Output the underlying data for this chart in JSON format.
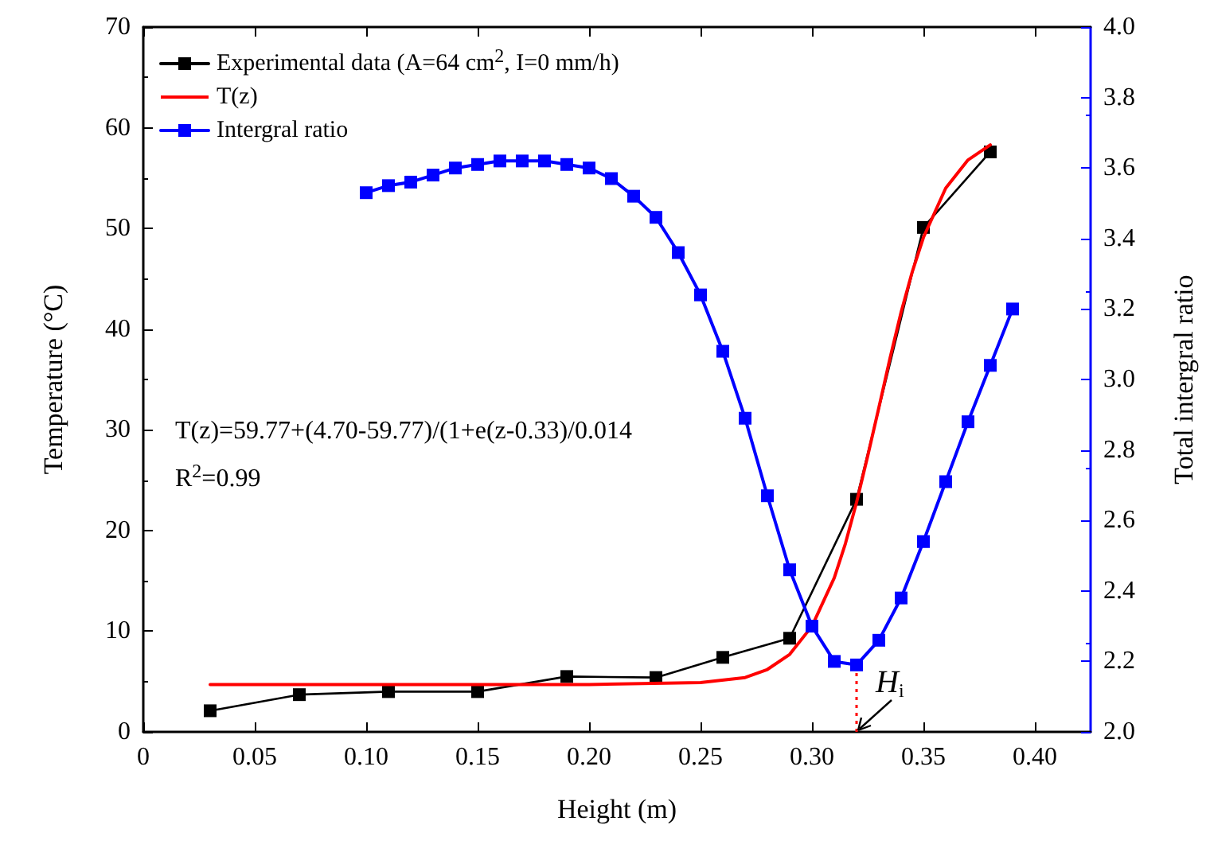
{
  "chart_data": {
    "type": "line",
    "xlabel": "Height (m)",
    "ylabel": "Temperature (°C)",
    "y2label": "Total intergral ratio",
    "xlim": [
      0,
      0.425
    ],
    "xticks": [
      0,
      {
        "value": 0.05,
        "label": "0.05"
      },
      {
        "value": 0.1,
        "label": "0.10"
      },
      {
        "value": 0.15,
        "label": "0.15"
      },
      {
        "value": 0.2,
        "label": "0.20"
      },
      {
        "value": 0.25,
        "label": "0.25"
      },
      {
        "value": 0.3,
        "label": "0.30"
      },
      {
        "value": 0.35,
        "label": "0.35"
      },
      {
        "value": 0.4,
        "label": "0.40"
      }
    ],
    "ylim": [
      0,
      70
    ],
    "yticks": [
      0,
      10,
      20,
      30,
      40,
      50,
      60,
      70
    ],
    "y2lim": [
      2.0,
      4.0
    ],
    "y2ticks": [
      {
        "value": 2.0,
        "label": "2.0"
      },
      {
        "value": 2.2,
        "label": "2.2"
      },
      {
        "value": 2.4,
        "label": "2.4"
      },
      {
        "value": 2.6,
        "label": "2.6"
      },
      {
        "value": 2.8,
        "label": "2.8"
      },
      {
        "value": 3.0,
        "label": "3.0"
      },
      {
        "value": 3.2,
        "label": "3.2"
      },
      {
        "value": 3.4,
        "label": "3.4"
      },
      {
        "value": 3.6,
        "label": "3.6"
      },
      {
        "value": 3.8,
        "label": "3.8"
      },
      {
        "value": 4.0,
        "label": "4.0"
      }
    ],
    "grid": false,
    "legend": "top left",
    "marker": "square",
    "line_style": "solid",
    "series": [
      {
        "name": "Experimental data (A=64 cm$^{2}$, I=0 mm/h)",
        "color": "#000000",
        "x": [
          0.03,
          0.07,
          0.11,
          0.15,
          0.19,
          0.23,
          0.26,
          0.29,
          0.32,
          0.35,
          0.38
        ],
        "values": [
          2.1,
          3.7,
          4.0,
          4.0,
          5.5,
          5.4,
          7.4,
          9.3,
          23.1,
          50.1,
          57.6
        ]
      },
      {
        "name": "T(z)",
        "color": "#ff0000",
        "marker": "none",
        "x": [
          0.03,
          0.1,
          0.2,
          0.25,
          0.27,
          0.28,
          0.29,
          0.3,
          0.31,
          0.315,
          0.32,
          0.325,
          0.33,
          0.335,
          0.34,
          0.345,
          0.35,
          0.36,
          0.37,
          0.38
        ],
        "values": [
          4.7,
          4.7,
          4.7,
          4.9,
          5.4,
          6.2,
          7.7,
          10.5,
          15.3,
          18.7,
          22.8,
          27.4,
          32.2,
          37.1,
          41.7,
          45.7,
          49.1,
          54.0,
          56.8,
          58.3
        ]
      },
      {
        "name": "Intergral ratio",
        "color": "#0000ff",
        "axis": "y2",
        "x": [
          0.1,
          0.11,
          0.12,
          0.13,
          0.14,
          0.15,
          0.16,
          0.17,
          0.18,
          0.19,
          0.2,
          0.21,
          0.22,
          0.23,
          0.24,
          0.25,
          0.26,
          0.27,
          0.28,
          0.29,
          0.3,
          0.31,
          0.32,
          0.33,
          0.34,
          0.35,
          0.36,
          0.37,
          0.38,
          0.39
        ],
        "values": [
          3.53,
          3.55,
          3.56,
          3.58,
          3.6,
          3.61,
          3.62,
          3.62,
          3.62,
          3.61,
          3.6,
          3.57,
          3.52,
          3.46,
          3.36,
          3.24,
          3.08,
          2.89,
          2.67,
          2.46,
          2.3,
          2.2,
          2.19,
          2.26,
          2.38,
          2.54,
          2.71,
          2.88,
          3.04,
          3.2
        ]
      }
    ],
    "ref_lines": [
      {
        "axis": "x",
        "value": 0.32,
        "color": "#ff0000",
        "line_style": "dotted"
      }
    ],
    "annotations": [
      "T(z)=59.77+(4.70-59.77)/(1+e(z-0.33)/0.014",
      "R$^{2}$=0.99",
      {
        "text": "H$_{i}$",
        "x": 0.32,
        "y": 0
      }
    ]
  }
}
